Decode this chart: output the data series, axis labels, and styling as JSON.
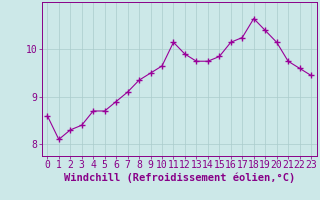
{
  "x": [
    0,
    1,
    2,
    3,
    4,
    5,
    6,
    7,
    8,
    9,
    10,
    11,
    12,
    13,
    14,
    15,
    16,
    17,
    18,
    19,
    20,
    21,
    22,
    23
  ],
  "y": [
    8.6,
    8.1,
    8.3,
    8.4,
    8.7,
    8.7,
    8.9,
    9.1,
    9.35,
    9.5,
    9.65,
    10.15,
    9.9,
    9.75,
    9.75,
    9.85,
    10.15,
    10.25,
    10.65,
    10.4,
    10.15,
    9.75,
    9.6,
    9.45
  ],
  "line_color": "#990099",
  "marker": "+",
  "marker_color": "#990099",
  "bg_color": "#cce8e8",
  "grid_color": "#aacccc",
  "axis_color": "#880088",
  "xlabel": "Windchill (Refroidissement éolien,°C)",
  "ylim": [
    7.75,
    11.0
  ],
  "xlim": [
    -0.5,
    23.5
  ],
  "yticks": [
    8,
    9,
    10
  ],
  "xticks": [
    0,
    1,
    2,
    3,
    4,
    5,
    6,
    7,
    8,
    9,
    10,
    11,
    12,
    13,
    14,
    15,
    16,
    17,
    18,
    19,
    20,
    21,
    22,
    23
  ],
  "xlabel_fontsize": 7.5,
  "tick_fontsize": 7.0
}
